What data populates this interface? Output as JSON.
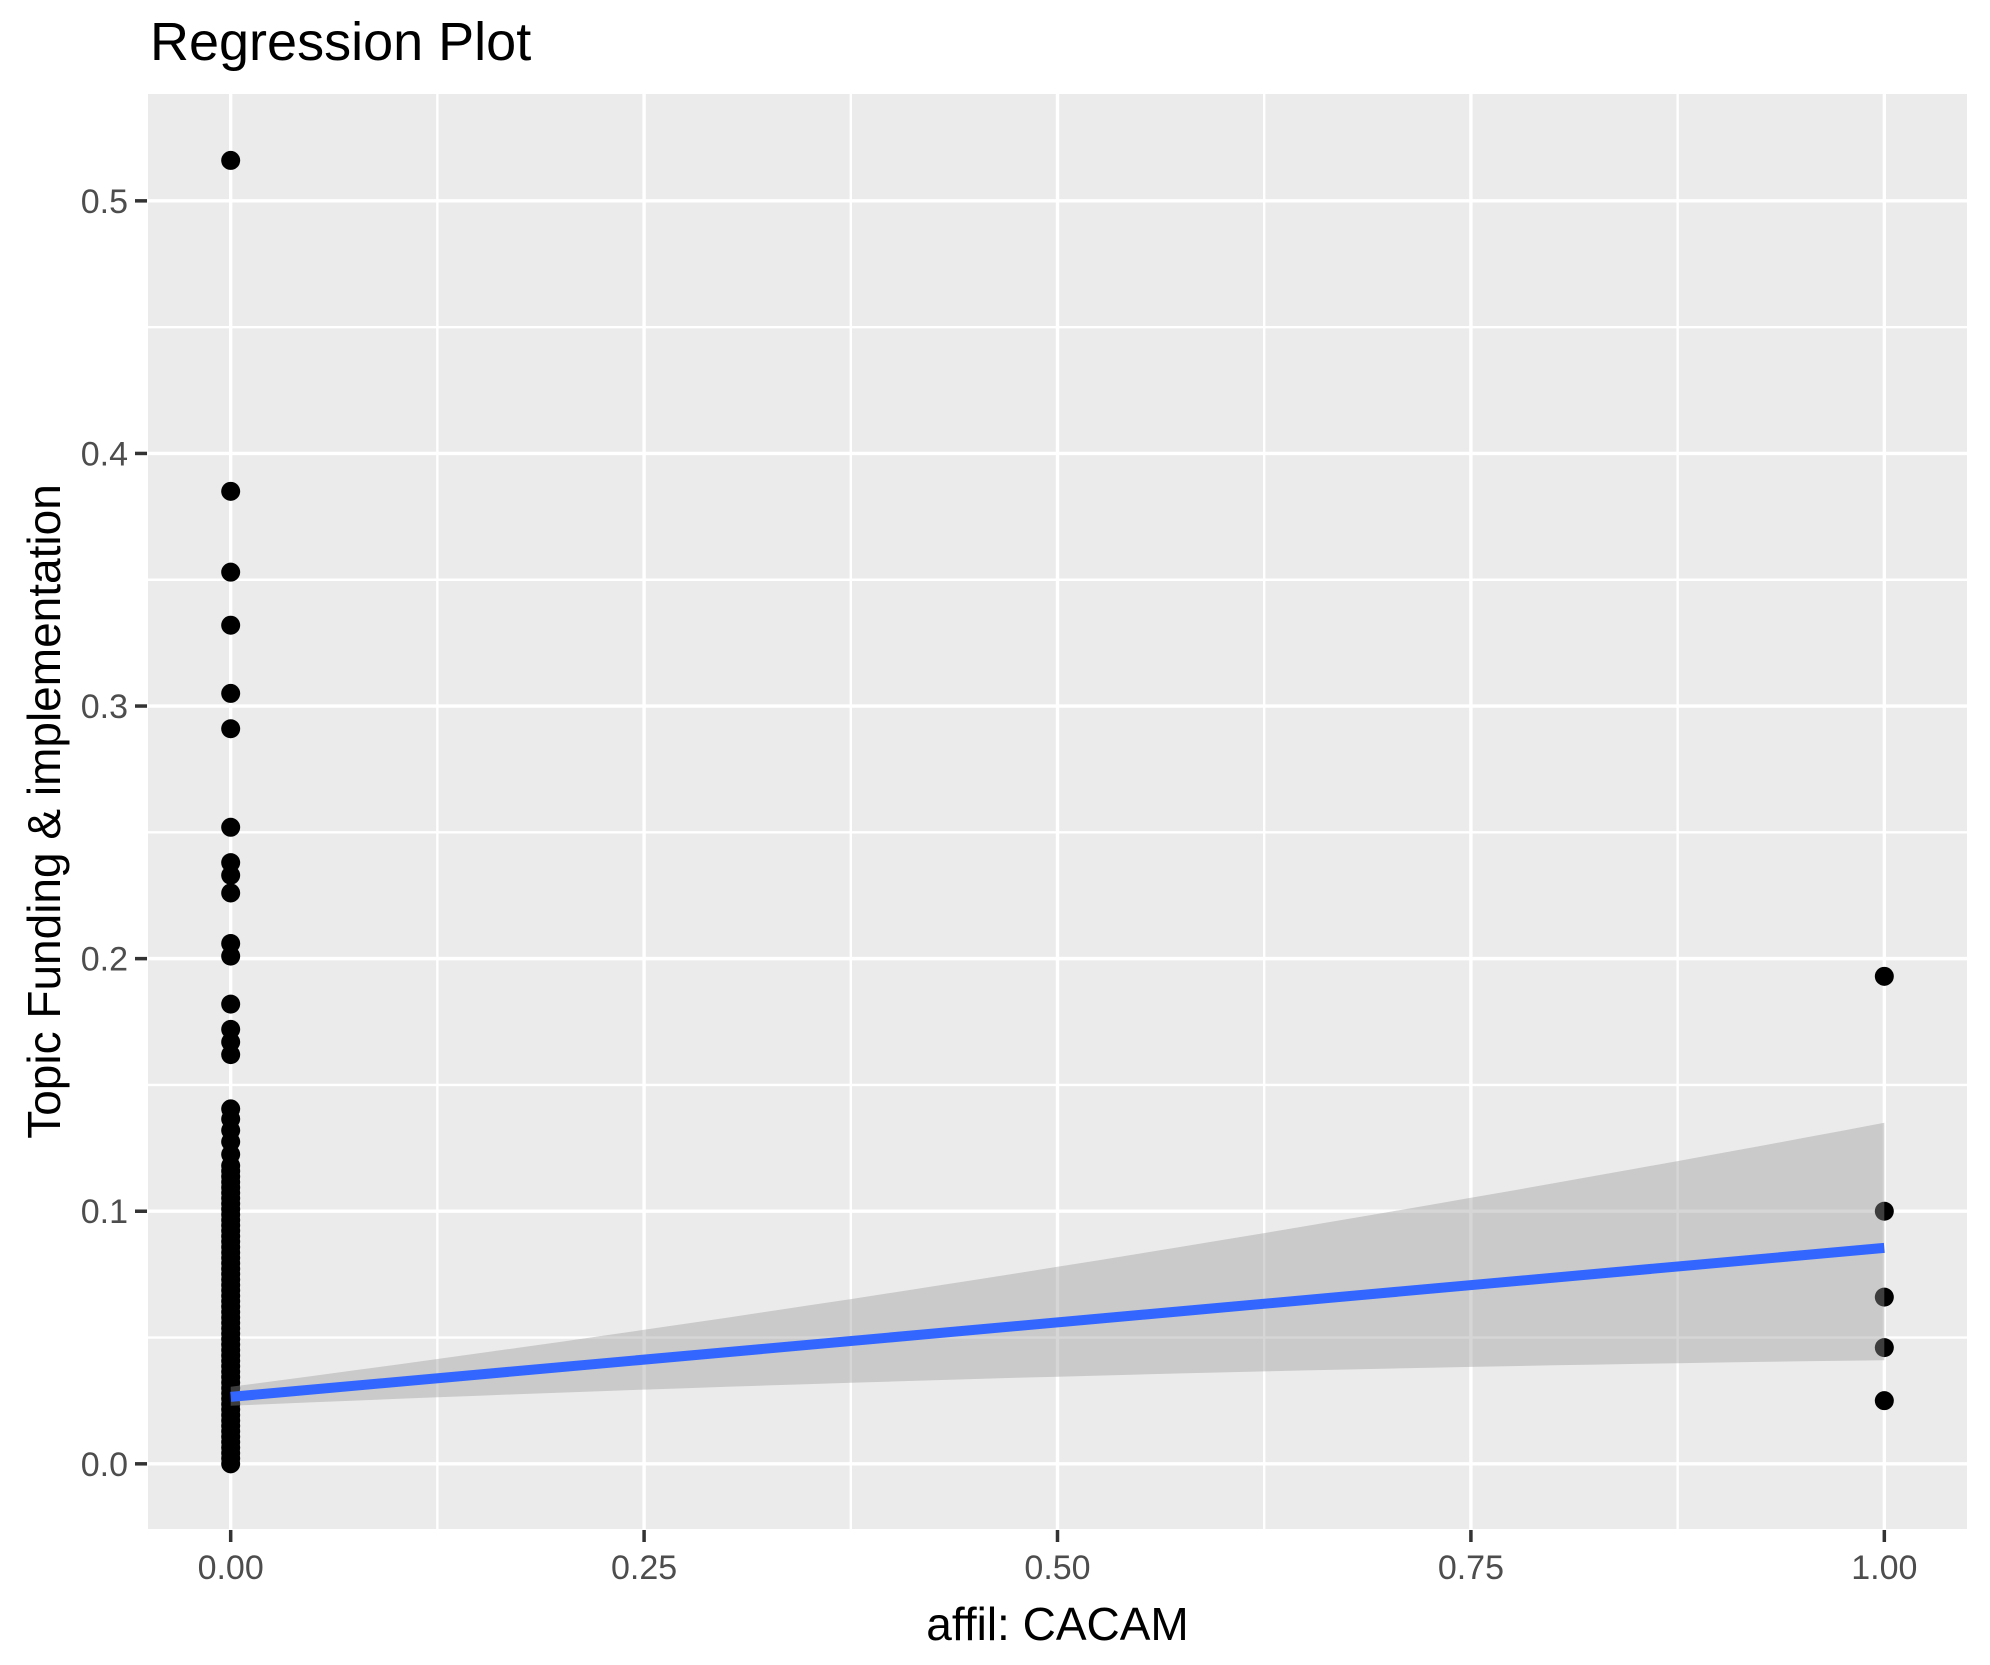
{
  "chart_data": {
    "type": "scatter",
    "title": "Regression Plot",
    "xlabel": "affil: CACAM",
    "ylabel": "Topic Funding & implementation",
    "xlim": [
      -0.05,
      1.05
    ],
    "ylim": [
      -0.0258,
      0.5423
    ],
    "x_ticks": [
      0.0,
      0.25,
      0.5,
      0.75,
      1.0
    ],
    "x_tick_labels": [
      "0.00",
      "0.25",
      "0.50",
      "0.75",
      "1.00"
    ],
    "x_minor_ticks": [
      0.125,
      0.375,
      0.625,
      0.875
    ],
    "y_ticks": [
      0.0,
      0.1,
      0.2,
      0.3,
      0.4,
      0.5
    ],
    "y_tick_labels": [
      "0.0",
      "0.1",
      "0.2",
      "0.3",
      "0.4",
      "0.5"
    ],
    "y_minor_ticks": [
      0.05,
      0.15,
      0.25,
      0.35,
      0.45
    ],
    "grid": true,
    "legend": "none",
    "series": [
      {
        "name": "affil = 0",
        "x": 0,
        "y_discrete": [
          0.516,
          0.385,
          0.353,
          0.332,
          0.305,
          0.291,
          0.252,
          0.238,
          0.233,
          0.226,
          0.206,
          0.201,
          0.182,
          0.172,
          0.167,
          0.162,
          0.1405,
          0.1365,
          0.132,
          0.1275,
          0.1225
        ],
        "y_dense_range": [
          0.0,
          0.118
        ],
        "y_dense_count": 56
      },
      {
        "name": "affil = 1",
        "x": 1,
        "y_discrete": [
          0.193,
          0.1,
          0.066,
          0.046,
          0.025
        ]
      }
    ],
    "regression_line": {
      "x": [
        0,
        1
      ],
      "y": [
        0.0265,
        0.0855
      ]
    },
    "confidence_band": {
      "x": [
        0,
        0.5,
        1
      ],
      "upper": [
        0.0305,
        0.078,
        0.135
      ],
      "lower": [
        0.023,
        0.0345,
        0.041
      ]
    },
    "colors": {
      "background": "#FFFFFF",
      "panel_background": "#EBEBEB",
      "grid": "#FFFFFF",
      "point": "#000000",
      "regression_line": "#3366FF",
      "ribbon": "#999999",
      "ribbon_opacity": "0.4",
      "tick_mark": "#333333",
      "tick_label": "#4D4D4D",
      "title_text": "#000000"
    }
  }
}
